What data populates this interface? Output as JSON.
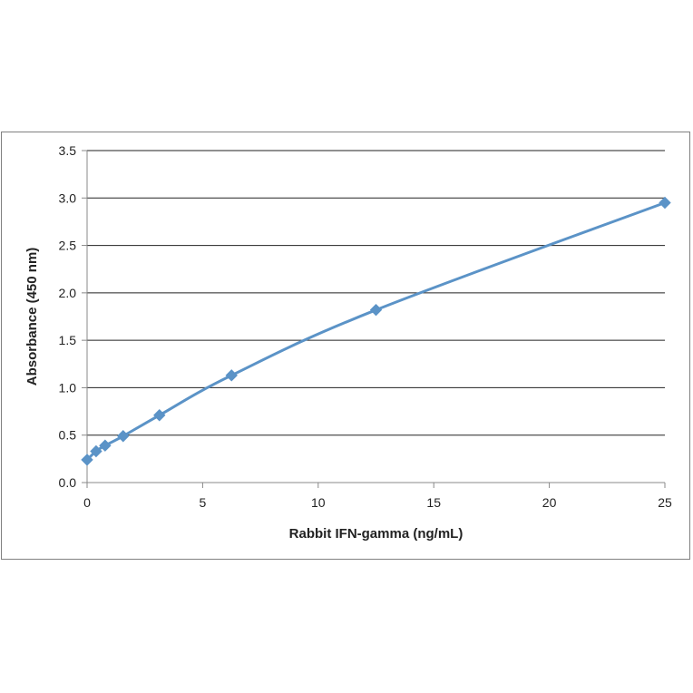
{
  "chart_data": {
    "type": "line",
    "title": "",
    "xlabel": "Rabbit IFN-gamma (ng/mL)",
    "ylabel": "Absorbance  (450 nm)",
    "xlim": [
      0,
      25
    ],
    "ylim": [
      0,
      3.5
    ],
    "xticks": [
      "0",
      "5",
      "10",
      "15",
      "20",
      "25"
    ],
    "yticks": [
      "0.0",
      "0.5",
      "1.0",
      "1.5",
      "2.0",
      "2.5",
      "3.0",
      "3.5"
    ],
    "grid": "horizontal",
    "legend": "none",
    "series": [
      {
        "color": "#5b93c7",
        "marker": "diamond",
        "smooth": true,
        "x": [
          0,
          0.39,
          0.78,
          1.56,
          3.13,
          6.25,
          12.5,
          25
        ],
        "y": [
          0.24,
          0.33,
          0.39,
          0.49,
          0.71,
          1.13,
          1.82,
          2.95
        ]
      }
    ]
  }
}
